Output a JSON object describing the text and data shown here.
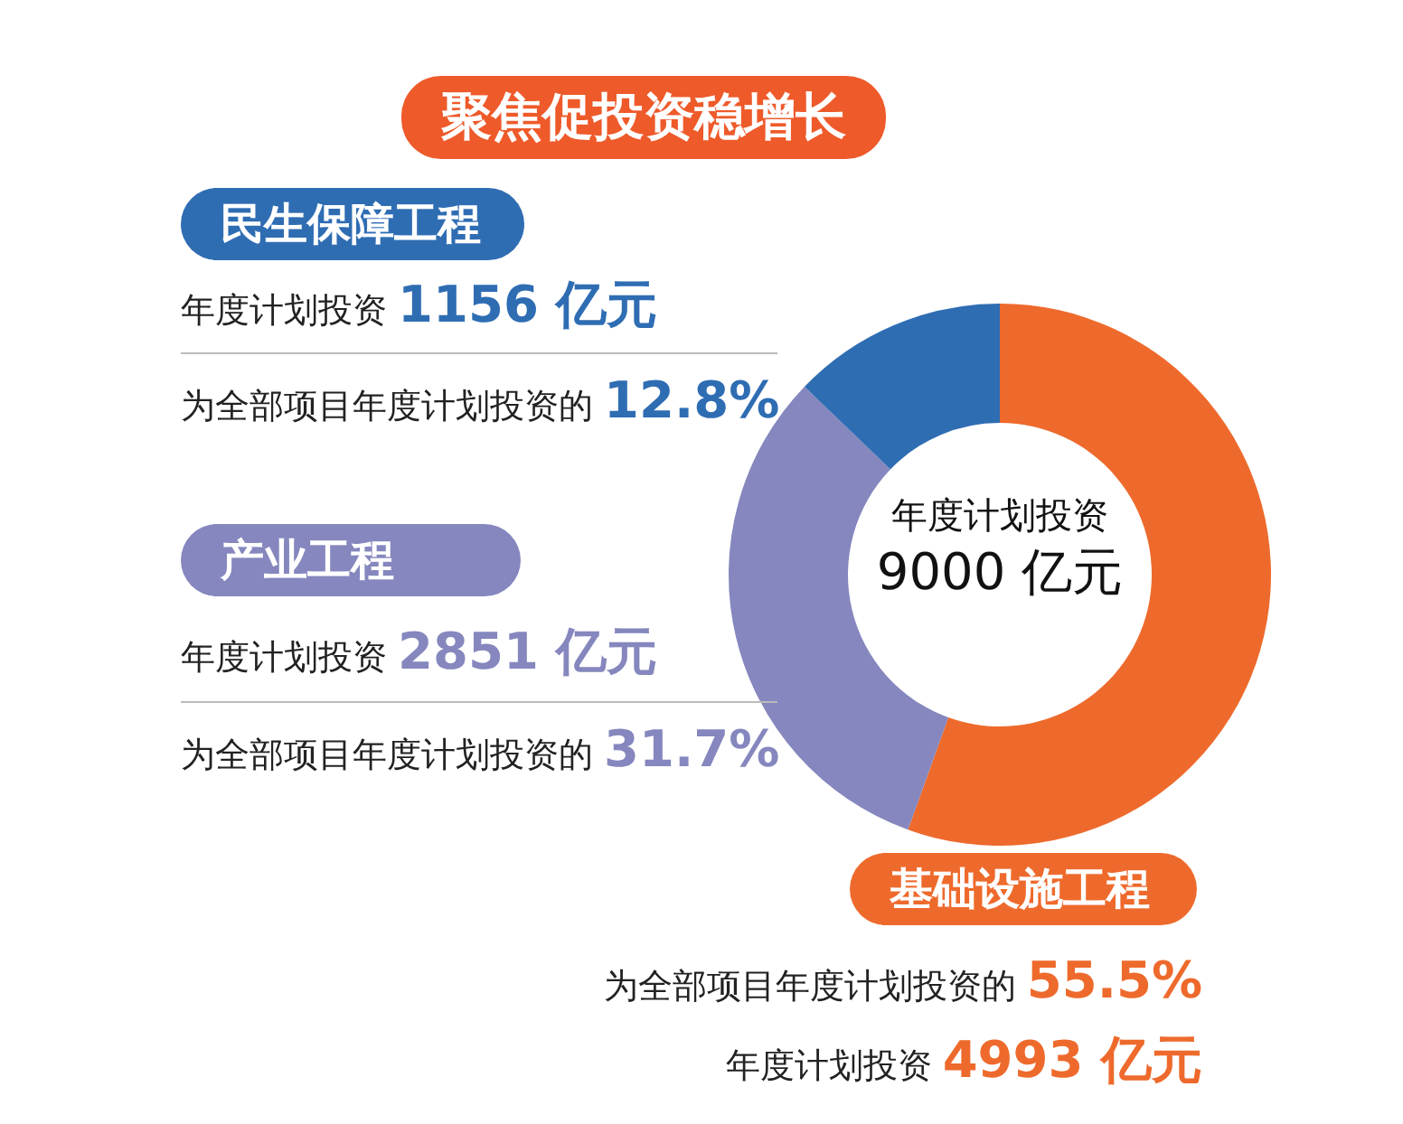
{
  "chart_data": {
    "type": "donut",
    "title": "聚焦促投资稳增长",
    "categories": [
      "基础设施工程",
      "产业工程",
      "民生保障工程"
    ],
    "values": [
      55.5,
      31.7,
      12.8
    ],
    "colors": [
      "#ee6a2c",
      "#8587be",
      "#2f6db3"
    ],
    "legend": "left",
    "annotations": [
      "年度计划投资 1156 亿元",
      "为全部项目年度计划投资的 12.8%",
      "年度计划投资 2851 亿元",
      "为全部项目年度计划投资的 31.7%",
      "为全部项目年度计划投资的 55.5%",
      "年度计划投资 4993 亿元",
      "年度计划投资",
      "9000 亿元"
    ]
  }
}
